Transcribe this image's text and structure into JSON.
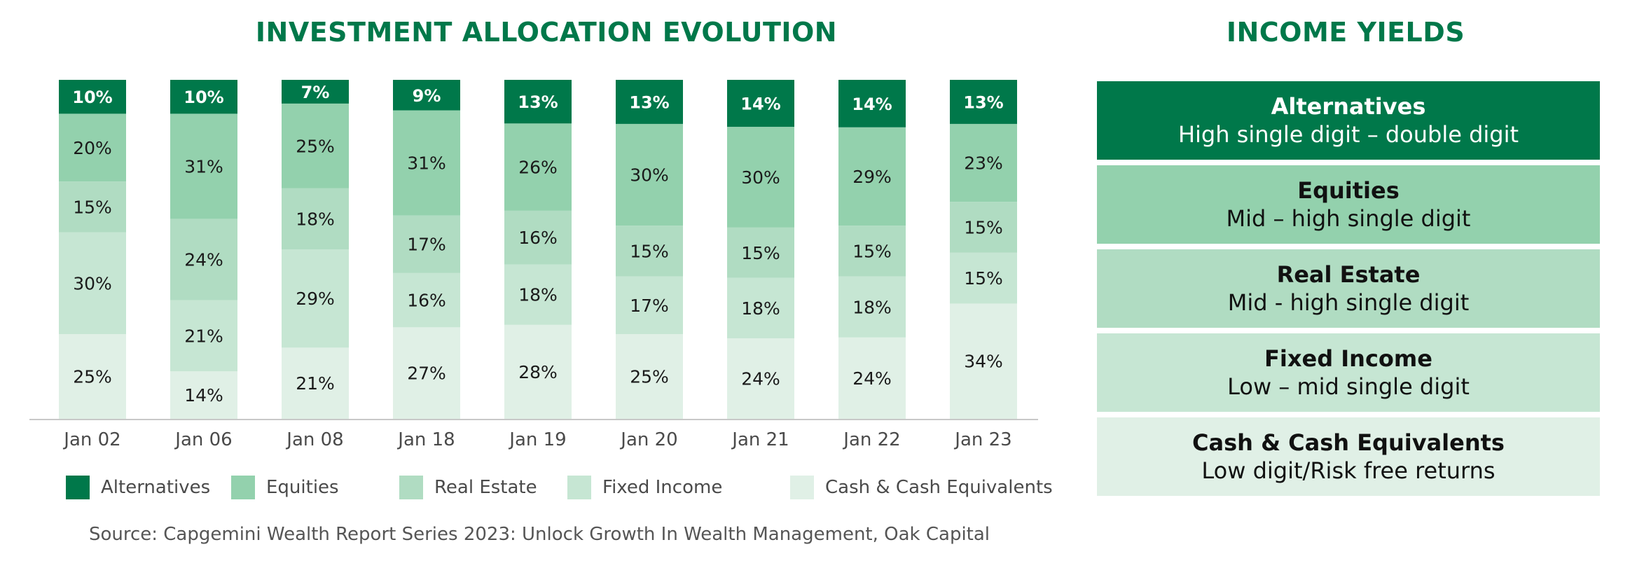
{
  "chart_data": {
    "type": "bar",
    "stacked": true,
    "title": "INVESTMENT ALLOCATION EVOLUTION",
    "xlabel": "",
    "ylabel": "",
    "ylim": [
      0,
      100
    ],
    "categories": [
      "Jan 02",
      "Jan 06",
      "Jan 08",
      "Jan 18",
      "Jan 19",
      "Jan 20",
      "Jan 21",
      "Jan 22",
      "Jan 23"
    ],
    "series": [
      {
        "name": "Cash & Cash Equivalents",
        "color": "#e0f0e6",
        "values": [
          25,
          14,
          21,
          27,
          28,
          25,
          24,
          24,
          34
        ]
      },
      {
        "name": "Fixed Income",
        "color": "#c6e6d3",
        "values": [
          30,
          21,
          29,
          16,
          18,
          17,
          18,
          18,
          15
        ]
      },
      {
        "name": "Real Estate",
        "color": "#b0dcc2",
        "values": [
          15,
          24,
          18,
          17,
          16,
          15,
          15,
          15,
          15
        ]
      },
      {
        "name": "Equities",
        "color": "#93d1ad",
        "values": [
          20,
          31,
          25,
          31,
          26,
          30,
          30,
          29,
          23
        ]
      },
      {
        "name": "Alternatives",
        "color": "#00784a",
        "values": [
          10,
          10,
          7,
          9,
          13,
          13,
          14,
          14,
          13
        ]
      }
    ],
    "legend": {
      "position": "bottom",
      "order": [
        "Alternatives",
        "Equities",
        "Real Estate",
        "Fixed Income",
        "Cash & Cash Equivalents"
      ]
    }
  },
  "yields": {
    "title": "INCOME YIELDS",
    "items": [
      {
        "name": "Alternatives",
        "desc": "High single digit – double digit",
        "bg": "#00784a",
        "fg": "#ffffff"
      },
      {
        "name": "Equities",
        "desc": "Mid – high single digit",
        "bg": "#93d1ad",
        "fg": "#111111"
      },
      {
        "name": "Real Estate",
        "desc": "Mid - high single digit",
        "bg": "#b0dcc2",
        "fg": "#111111"
      },
      {
        "name": "Fixed Income",
        "desc": "Low – mid single digit",
        "bg": "#c6e6d3",
        "fg": "#111111"
      },
      {
        "name": "Cash & Cash Equivalents",
        "desc": "Low digit/Risk free returns",
        "bg": "#e0f0e6",
        "fg": "#111111"
      }
    ]
  },
  "source": "Source: Capgemini Wealth Report Series 2023: Unlock Growth In Wealth Management, Oak Capital"
}
